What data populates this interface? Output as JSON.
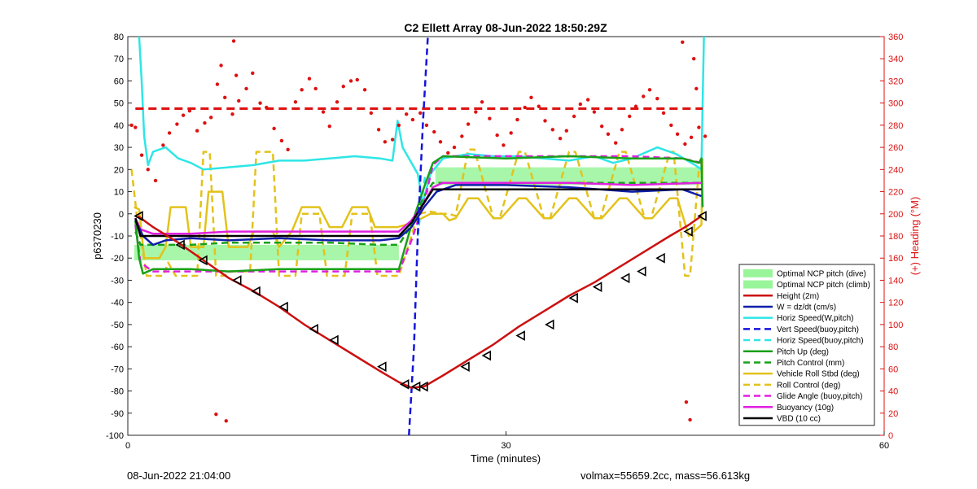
{
  "chart_data": {
    "type": "line",
    "title": "C2 Ellett Array 08-Jun-2022 18:50:29Z",
    "xlabel": "Time (minutes)",
    "ylabel": "p6370230",
    "y2label": "(+) Heading (°M)",
    "xlim": [
      0,
      60
    ],
    "ylim": [
      -100,
      80
    ],
    "y2lim": [
      0,
      360
    ],
    "xticks": [
      0,
      30,
      60
    ],
    "yticks": [
      -100,
      -90,
      -80,
      -70,
      -60,
      -50,
      -40,
      -30,
      -20,
      -10,
      0,
      10,
      20,
      30,
      40,
      50,
      60,
      70,
      80
    ],
    "y2ticks": [
      0,
      20,
      40,
      60,
      80,
      100,
      120,
      140,
      160,
      180,
      200,
      220,
      240,
      260,
      280,
      300,
      320,
      340,
      360
    ],
    "grid": false,
    "legend_position": "bottom-right",
    "colors": {
      "height": "#cc1111",
      "w": "#0f1ea8",
      "horiz": "#2ee6e6",
      "vert_buoy": "#1414dd",
      "pitch_up": "#18a018",
      "roll": "#e3c21b",
      "glide": "#e020e0",
      "vbd": "#000000",
      "heading": "#dd1111",
      "optimal_fill": "#99f59a"
    },
    "series": [
      {
        "name": "Optimal NCP pitch (dive)",
        "style": "fill",
        "x_range": [
          0.5,
          21.5
        ],
        "band": [
          -14,
          -21
        ]
      },
      {
        "name": "Optimal NCP pitch (climb)",
        "style": "fill",
        "x_range": [
          24.4,
          45.6
        ],
        "band": [
          21,
          13
        ]
      },
      {
        "name": "Height (2m)",
        "style": "solid",
        "x": [
          0.8,
          2,
          4,
          6,
          8,
          10,
          12,
          14,
          16,
          18,
          20,
          21.5,
          22.5,
          23.5,
          25,
          27,
          29,
          31,
          33,
          35,
          37,
          39,
          41,
          43,
          44.5,
          45.5
        ],
        "y": [
          -1,
          -6,
          -13,
          -21,
          -29,
          -35,
          -42,
          -50,
          -57,
          -64,
          -71,
          -76,
          -78.5,
          -78,
          -73,
          -66,
          -59,
          -51,
          -44,
          -37,
          -31,
          -24,
          -17,
          -10,
          -5,
          -1
        ]
      },
      {
        "name": "W = dz/dt (cm/s)",
        "style": "solid",
        "x": [
          0.6,
          1.2,
          2,
          3,
          5,
          8,
          12,
          16,
          20,
          21.5,
          22.5,
          23.5,
          24.5,
          26,
          30,
          35,
          40,
          44,
          45.5
        ],
        "y": [
          -3,
          -10,
          -14,
          -12,
          -11,
          -12,
          -11,
          -12,
          -12,
          -11,
          -6,
          3,
          10,
          13,
          13,
          12,
          10,
          11,
          8
        ]
      },
      {
        "name": "Horiz Speed(W,pitch)",
        "style": "solid",
        "x": [
          0.9,
          1.1,
          1.3,
          1.6,
          2,
          3,
          4,
          5,
          6,
          8,
          10,
          12,
          14,
          16,
          18,
          20,
          21,
          21.4,
          21.8,
          22.4,
          23,
          23.4,
          24,
          25,
          27,
          29,
          31,
          33,
          35,
          37,
          38.5,
          40,
          42,
          43.5,
          45,
          45.5,
          45.6,
          45.7
        ],
        "y": [
          80,
          60,
          35,
          22,
          28,
          30,
          25,
          23,
          20,
          21,
          22,
          24,
          24,
          25,
          26,
          25,
          24,
          42,
          30,
          24,
          18,
          5,
          18,
          25,
          27,
          26,
          26,
          25,
          24,
          26,
          23,
          25,
          30,
          27,
          22,
          20,
          50,
          80
        ]
      },
      {
        "name": "Vert Speed(buoy,pitch)",
        "style": "dashed",
        "x": [
          22.3,
          22.7,
          23.0,
          23.4,
          23.8
        ],
        "y": [
          -100,
          -60,
          -10,
          40,
          80
        ]
      },
      {
        "name": "Horiz Speed(buoy,pitch)",
        "style": "dashed",
        "x": [
          23.0,
          23.3,
          23.6
        ],
        "y": [
          -10,
          5,
          18
        ]
      },
      {
        "name": "Pitch Up (deg)",
        "style": "solid",
        "x": [
          0.6,
          0.9,
          1.2,
          2,
          5,
          8,
          12,
          16,
          20,
          21.5,
          22.5,
          23.5,
          24.2,
          25,
          30,
          35,
          40,
          44,
          45.3,
          45.5,
          45.6
        ],
        "y": [
          -3,
          -20,
          -27,
          -25,
          -25,
          -26,
          -25,
          -25,
          -25,
          -25,
          -5,
          12,
          23,
          26,
          25,
          26,
          25,
          25,
          23,
          25,
          3
        ]
      },
      {
        "name": "Pitch Control (mm)",
        "style": "dashed",
        "x": [
          0.6,
          1,
          2,
          5,
          8,
          12,
          16,
          20,
          21.5,
          22.5,
          23.5,
          24.2,
          25,
          30,
          35,
          40,
          45.5
        ],
        "y": [
          -8,
          -14,
          -14,
          -14,
          -13,
          -13,
          -13,
          -14,
          -14,
          -5,
          8,
          14,
          14,
          14,
          14,
          14,
          14
        ]
      },
      {
        "name": "Vehicle Roll Stbd (deg)",
        "style": "solid",
        "x": [
          0.5,
          0.9,
          1.3,
          2.5,
          3,
          3.4,
          4.6,
          5,
          6,
          6.4,
          7.5,
          8,
          9.5,
          10,
          11.5,
          12,
          13,
          13.8,
          15.2,
          16,
          17,
          17.8,
          19,
          19.6,
          20.7,
          21.4,
          22,
          23,
          24,
          25,
          25.5,
          26,
          27,
          27.8,
          29,
          29.6,
          31,
          31.6,
          33,
          33.6,
          35,
          35.6,
          37,
          37.6,
          39,
          39.6,
          41,
          41.6,
          43,
          43.6,
          44.5,
          45.5,
          45.6
        ],
        "y": [
          3,
          2,
          -20,
          -20,
          -15,
          3,
          3,
          -15,
          -15,
          10,
          10,
          -15,
          -15,
          -8,
          -8,
          -15,
          -8,
          3,
          3,
          -6,
          -6,
          3,
          3,
          -6,
          -6,
          -6,
          -5,
          -3,
          0,
          0,
          -3,
          -2,
          7,
          7,
          -2,
          -2,
          7,
          7,
          -2,
          -2,
          7,
          7,
          -2,
          -2,
          7,
          7,
          -2,
          -2,
          7,
          7,
          -10,
          -5,
          25
        ]
      },
      {
        "name": "Roll Control (deg)",
        "style": "dashed",
        "x": [
          0.3,
          0.7,
          1,
          1.5,
          2.8,
          3.2,
          3.8,
          4.4,
          5.5,
          6,
          6.5,
          7,
          7.6,
          8.2,
          9.7,
          10.2,
          11.5,
          12,
          13.3,
          13.8,
          15.2,
          15.8,
          17.2,
          17.8,
          19.2,
          19.8,
          21,
          21.5,
          22.5,
          23,
          24,
          25,
          25.5,
          26,
          27,
          27.5,
          29,
          29.5,
          31,
          31.5,
          33,
          33.5,
          35,
          35.5,
          37,
          37.5,
          39,
          39.5,
          41,
          41.5,
          43,
          43.3,
          44.2,
          44.6,
          45.3
        ],
        "y": [
          20,
          0,
          -10,
          -28,
          -28,
          -22,
          -28,
          -28,
          -28,
          28,
          28,
          -28,
          -28,
          -26,
          -26,
          28,
          28,
          -28,
          -28,
          0,
          0,
          -28,
          -28,
          0,
          0,
          -28,
          -28,
          -28,
          -10,
          0,
          1,
          0,
          0,
          -1,
          29,
          29,
          -2,
          -2,
          28,
          28,
          -2,
          -2,
          28,
          28,
          -2,
          -2,
          28,
          28,
          -2,
          -2,
          28,
          28,
          -28,
          -28,
          20
        ]
      },
      {
        "name": "Glide Angle (buoy,pitch)",
        "style": "dashed",
        "x": [
          0.6,
          1,
          2,
          5,
          8,
          12,
          16,
          20,
          21.5,
          22.5,
          23.5,
          24.2,
          25,
          30,
          35,
          40,
          44,
          45.5
        ],
        "y": [
          -5,
          -22,
          -26,
          -26,
          -26,
          -26,
          -26,
          -26,
          -26,
          -12,
          5,
          22,
          26,
          26,
          26,
          26,
          25,
          23
        ]
      },
      {
        "name": "Buoyancy (10g)",
        "style": "solid",
        "x": [
          0.6,
          1,
          2,
          5,
          8,
          12,
          16,
          20,
          21.5,
          22.5,
          23.5,
          24.2,
          25,
          30,
          35,
          40,
          45.5
        ],
        "y": [
          -2,
          -7,
          -9,
          -9,
          -8,
          -8,
          -8,
          -8,
          -8,
          -3,
          5,
          12,
          14,
          14,
          14,
          13,
          14
        ]
      },
      {
        "name": "VBD (10 cc)",
        "style": "solid",
        "x": [
          0.6,
          1,
          2,
          5,
          8,
          12,
          16,
          20,
          21.5,
          22.5,
          23.5,
          24.2,
          25,
          30,
          35,
          40,
          45.5
        ],
        "y": [
          -2,
          -10,
          -10,
          -10,
          -10,
          -10,
          -10,
          -10,
          -10,
          -4,
          5,
          11,
          11,
          11,
          11,
          11,
          11
        ]
      }
    ],
    "height_markers": {
      "x": [
        0.9,
        4.2,
        6.0,
        8.7,
        10.2,
        12.4,
        14.8,
        16.4,
        20.2,
        22.0,
        22.9,
        23.5,
        26.8,
        28.5,
        31.2,
        33.5,
        35.4,
        37.3,
        39.5,
        40.8,
        42.3,
        44.5,
        45.6
      ],
      "y": [
        -1,
        -14,
        -21,
        -30,
        -35,
        -42,
        -52,
        -57,
        -69,
        -77,
        -78,
        -78,
        -69,
        -64,
        -55,
        -50,
        -38,
        -33,
        -29,
        -26,
        -20,
        -8,
        -1
      ]
    },
    "heading": {
      "axis": "right",
      "target": 295,
      "x": [
        0.3,
        0.6,
        1.1,
        1.6,
        2.2,
        2.8,
        3.3,
        3.9,
        4.4,
        4.9,
        5.5,
        6.1,
        6.6,
        7.1,
        7.7,
        8.3,
        8.8,
        9.4,
        9.9,
        10.5,
        11.0,
        11.6,
        12.2,
        12.7,
        13.3,
        13.8,
        14.4,
        14.9,
        15.5,
        16.0,
        16.6,
        17.1,
        17.7,
        18.2,
        18.8,
        19.3,
        19.9,
        20.4,
        21.0,
        21.5,
        22.1,
        22.6,
        23.2,
        23.7,
        24.3,
        24.8,
        25.4,
        25.9,
        26.5,
        27.0,
        27.6,
        28.1,
        28.7,
        29.3,
        29.8,
        30.4,
        30.9,
        31.5,
        32.0,
        32.6,
        33.1,
        33.7,
        34.3,
        34.8,
        35.4,
        35.9,
        36.5,
        37.0,
        37.6,
        38.1,
        38.7,
        39.2,
        39.8,
        40.3,
        40.9,
        41.4,
        42.0,
        42.5,
        43.1,
        43.6,
        44.2,
        44.7,
        45.3,
        45.8,
        8.4,
        8.6,
        7.0,
        7.8,
        7.4,
        44.0,
        44.3,
        44.6,
        44.9,
        45.1
      ],
      "y": [
        280,
        278,
        253,
        240,
        230,
        262,
        273,
        281,
        289,
        293,
        275,
        282,
        287,
        317,
        305,
        290,
        302,
        313,
        327,
        300,
        296,
        277,
        266,
        258,
        301,
        312,
        322,
        313,
        292,
        279,
        301,
        315,
        320,
        321,
        312,
        291,
        276,
        265,
        267,
        280,
        290,
        285,
        291,
        280,
        274,
        265,
        255,
        260,
        270,
        281,
        292,
        301,
        286,
        271,
        262,
        273,
        285,
        296,
        305,
        297,
        284,
        276,
        268,
        275,
        288,
        299,
        303,
        292,
        279,
        272,
        264,
        276,
        288,
        297,
        306,
        312,
        304,
        291,
        280,
        272,
        263,
        269,
        278,
        270,
        356,
        325,
        19,
        13,
        334,
        355,
        30,
        14,
        340,
        313
      ]
    }
  },
  "legend": {
    "entries": [
      "Optimal NCP pitch (dive)",
      "Optimal NCP pitch (climb)",
      "Height (2m)",
      "W = dz/dt (cm/s)",
      "Horiz Speed(W,pitch)",
      "Vert Speed(buoy,pitch)",
      "Horiz Speed(buoy,pitch)",
      "Pitch Up (deg)",
      "Pitch Control (mm)",
      "Vehicle Roll Stbd (deg)",
      "Roll Control (deg)",
      "Glide Angle (buoy,pitch)",
      "Buoyancy (10g)",
      "VBD (10 cc)"
    ]
  },
  "footer": {
    "left": "08-Jun-2022 21:04:00",
    "right": "volmax=55659.2cc, mass=56.613kg"
  }
}
